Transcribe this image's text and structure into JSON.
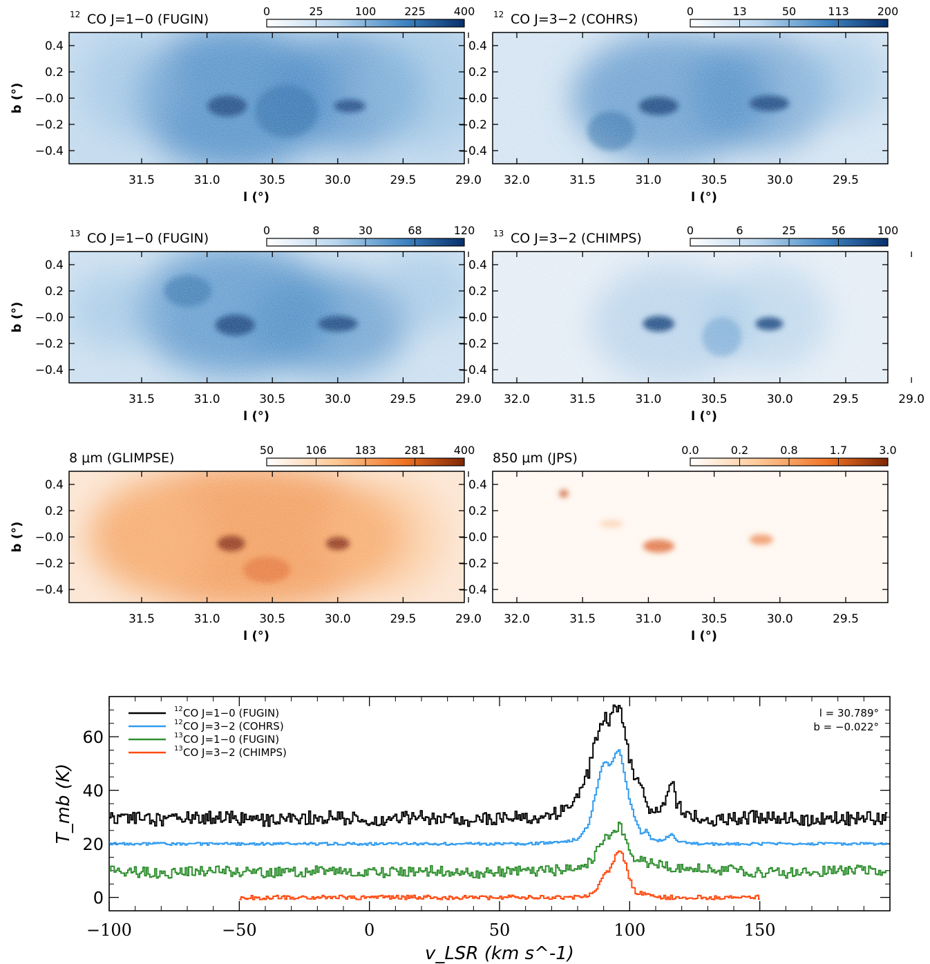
{
  "colors": {
    "blue_cmap": [
      "#ffffff",
      "#08306b"
    ],
    "orange_cmap": [
      "#ffffff",
      "#7f2704"
    ],
    "series_12co10": "#000000",
    "series_12co32": "#2f9bf0",
    "series_13co10": "#2f8f2f",
    "series_13co32": "#ff4a10"
  },
  "panels": [
    {
      "title": "CO J=1−0 (FUGIN)",
      "isotope": "12",
      "cmap": "blue",
      "colorbar_ticks": [
        "0",
        "25",
        "100",
        "225",
        "400"
      ],
      "xticks": [
        "31.5",
        "31.0",
        "30.5",
        "30.0",
        "29.5",
        "29.0"
      ],
      "yticks": [
        "0.4",
        "0.2",
        "−0.0",
        "−0.2",
        "−0.4"
      ],
      "xlabel": "l (°)",
      "ylabel": "b (°)"
    },
    {
      "title": "CO J=3−2 (COHRS)",
      "isotope": "12",
      "cmap": "blue",
      "colorbar_ticks": [
        "0",
        "13",
        "50",
        "113",
        "200"
      ],
      "xticks": [
        "32.0",
        "31.5",
        "31.0",
        "30.5",
        "30.0",
        "29.5"
      ],
      "yticks": [
        "0.4",
        "0.2",
        "−0.0",
        "−0.2",
        "−0.4"
      ],
      "xlabel": "l (°)",
      "ylabel": ""
    },
    {
      "title": "CO J=1−0 (FUGIN)",
      "isotope": "13",
      "cmap": "blue",
      "colorbar_ticks": [
        "0",
        "8",
        "30",
        "68",
        "120"
      ],
      "xticks": [
        "31.5",
        "31.0",
        "30.5",
        "30.0",
        "29.5",
        "29.0"
      ],
      "yticks": [
        "0.4",
        "0.2",
        "−0.0",
        "−0.2",
        "−0.4"
      ],
      "xlabel": "l (°)",
      "ylabel": "b (°)"
    },
    {
      "title": "CO J=3−2 (CHIMPS)",
      "isotope": "13",
      "cmap": "blue",
      "colorbar_ticks": [
        "0",
        "6",
        "25",
        "56",
        "100"
      ],
      "xticks": [
        "32.0",
        "31.5",
        "31.0",
        "30.5",
        "30.0",
        "29.5",
        "29.0"
      ],
      "yticks": [
        "0.4",
        "0.2",
        "−0.0",
        "−0.2",
        "−0.4"
      ],
      "xlabel": "l (°)",
      "ylabel": ""
    },
    {
      "title": "8 μm (GLIMPSE)",
      "isotope": "",
      "cmap": "orange",
      "colorbar_ticks": [
        "50",
        "106",
        "183",
        "281",
        "400"
      ],
      "xticks": [
        "31.5",
        "31.0",
        "30.5",
        "30.0",
        "29.5",
        "29.0"
      ],
      "yticks": [
        "0.4",
        "0.2",
        "−0.0",
        "−0.2",
        "−0.4"
      ],
      "xlabel": "l (°)",
      "ylabel": "b (°)"
    },
    {
      "title": "850 μm (JPS)",
      "isotope": "",
      "cmap": "orange",
      "colorbar_ticks": [
        "0.0",
        "0.2",
        "0.8",
        "1.7",
        "3.0"
      ],
      "xticks": [
        "32.0",
        "31.5",
        "31.0",
        "30.5",
        "30.0",
        "29.5"
      ],
      "yticks": [
        "0.4",
        "0.2",
        "−0.0",
        "−0.2",
        "−0.4"
      ],
      "xlabel": "l (°)",
      "ylabel": ""
    }
  ],
  "chart_data": {
    "type": "line",
    "xlabel": "v_LSR (km s^-1)",
    "ylabel": "T_mb (K)",
    "xlim": [
      -100,
      200
    ],
    "ylim": [
      -5,
      75
    ],
    "xticks": [
      "−100",
      "−50",
      "0",
      "50",
      "100",
      "150"
    ],
    "yticks": [
      "0",
      "20",
      "40",
      "60"
    ],
    "annotation_l": "l = 30.789°",
    "annotation_b": "b = −0.022°",
    "legend_position": "top-left",
    "series": [
      {
        "name": "CO J=1−0 (FUGIN)",
        "isotope": "12",
        "x": [
          -100,
          -80,
          -60,
          -40,
          -20,
          0,
          20,
          40,
          60,
          70,
          75,
          80,
          84,
          86,
          88,
          90,
          92,
          94,
          96,
          98,
          100,
          102,
          104,
          106,
          108,
          110,
          113,
          116,
          118,
          122,
          130,
          150,
          170,
          199
        ],
        "y": [
          30,
          29,
          30,
          29,
          30,
          29,
          30,
          29,
          30,
          31,
          33,
          37,
          47,
          56,
          63,
          68,
          66,
          70,
          72,
          60,
          50,
          45,
          42,
          36,
          33,
          32,
          35,
          43,
          34,
          31,
          29,
          30,
          29,
          30
        ]
      },
      {
        "name": "CO J=3−2 (COHRS)",
        "isotope": "12",
        "x": [
          -100,
          -80,
          -60,
          -40,
          -20,
          0,
          20,
          40,
          60,
          70,
          76,
          80,
          84,
          86,
          88,
          90,
          92,
          94,
          96,
          98,
          100,
          102,
          104,
          106,
          108,
          112,
          116,
          118,
          125,
          150,
          175,
          199
        ],
        "y": [
          20,
          20,
          20,
          20,
          20,
          20,
          20,
          20,
          20,
          20.5,
          21,
          22,
          27,
          36,
          45,
          51,
          49,
          53,
          55,
          44,
          35,
          29,
          24,
          25,
          22,
          21,
          24,
          21,
          20,
          20,
          20,
          20
        ]
      },
      {
        "name": "CO J=1−0 (FUGIN)",
        "isotope": "13",
        "x": [
          -100,
          -80,
          -60,
          -40,
          -20,
          0,
          20,
          40,
          60,
          70,
          78,
          82,
          86,
          88,
          90,
          92,
          94,
          96,
          98,
          100,
          102,
          106,
          110,
          120,
          140,
          160,
          180,
          199
        ],
        "y": [
          10,
          9,
          10,
          9,
          10,
          9,
          10,
          9,
          10,
          10,
          11,
          12,
          15,
          19,
          23,
          22,
          24,
          27,
          22,
          17,
          14,
          13,
          12,
          11,
          10,
          9,
          10,
          10
        ]
      },
      {
        "name": "CO J=3−2 (CHIMPS)",
        "isotope": "13",
        "x": [
          -50,
          -40,
          -30,
          -20,
          0,
          20,
          40,
          60,
          80,
          84,
          86,
          88,
          90,
          92,
          94,
          96,
          98,
          100,
          102,
          106,
          110,
          120,
          130,
          140,
          150
        ],
        "y": [
          0,
          0,
          0,
          0,
          0,
          0,
          0,
          0,
          0,
          1,
          2,
          5,
          9,
          10,
          15,
          18,
          13,
          6,
          2,
          1,
          0,
          0,
          0,
          0,
          0
        ]
      }
    ]
  }
}
